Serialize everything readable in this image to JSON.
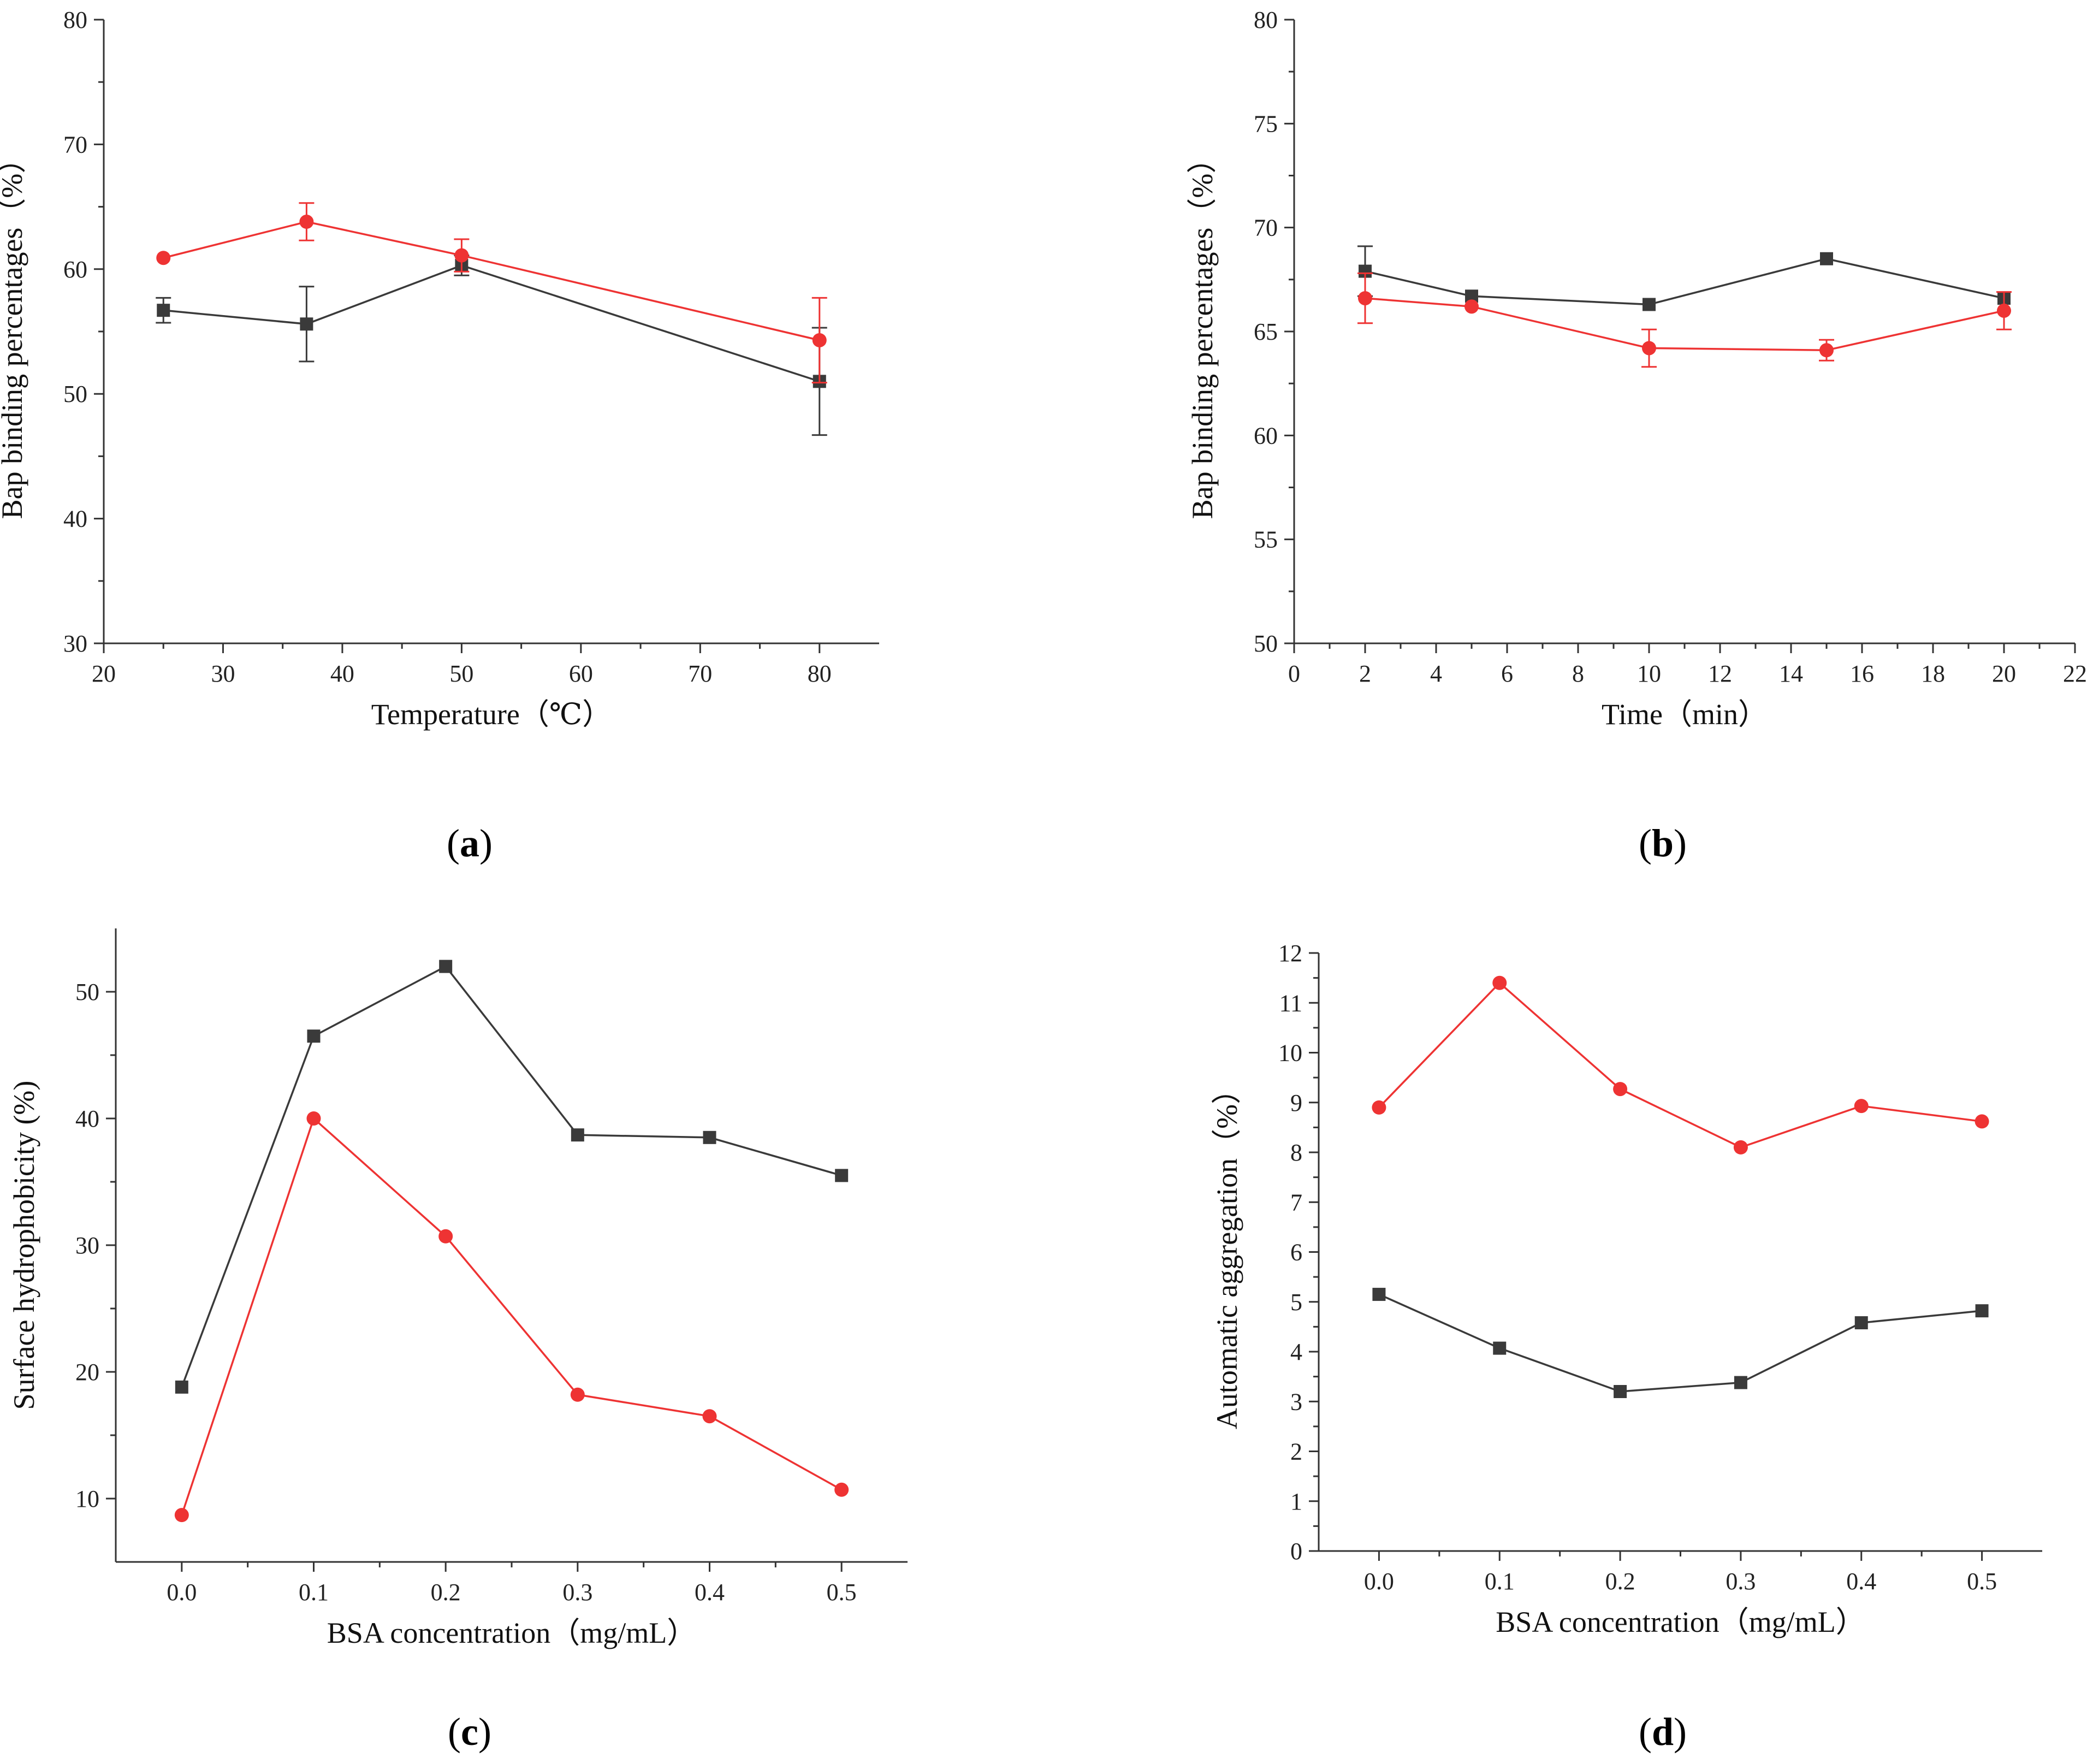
{
  "colors": {
    "black_series": "#3a3a3a",
    "red_series": "#ee3333",
    "axis": "#333333"
  },
  "chart_data": [
    {
      "panel": "a",
      "label": "a",
      "type": "line",
      "xlabel": "Temperature（℃）",
      "ylabel": "Bap binding percentages（%）",
      "xlim": [
        20,
        85
      ],
      "ylim": [
        30,
        80
      ],
      "xticks": [
        20,
        30,
        40,
        50,
        60,
        70,
        80
      ],
      "yticks": [
        30,
        40,
        50,
        60,
        70,
        80
      ],
      "x_decimals": 0,
      "y_decimals": 0,
      "series": [
        {
          "marker": "square",
          "color": "#3a3a3a",
          "x": [
            25,
            37,
            50,
            80
          ],
          "y": [
            56.7,
            55.6,
            60.3,
            51.0
          ],
          "err": [
            1.0,
            3.0,
            0.8,
            4.3
          ]
        },
        {
          "marker": "circle",
          "color": "#ee3333",
          "x": [
            25,
            37,
            50,
            80
          ],
          "y": [
            60.9,
            63.8,
            61.1,
            54.3
          ],
          "err": [
            0,
            1.5,
            1.3,
            3.4
          ]
        }
      ]
    },
    {
      "panel": "b",
      "label": "b",
      "type": "line",
      "xlabel": "Time（min）",
      "ylabel": "Bap binding percentages（%）",
      "xlim": [
        0,
        22
      ],
      "ylim": [
        50,
        80
      ],
      "xticks": [
        0,
        2,
        4,
        6,
        8,
        10,
        12,
        14,
        16,
        18,
        20,
        22
      ],
      "yticks": [
        50,
        55,
        60,
        65,
        70,
        75,
        80
      ],
      "x_decimals": 0,
      "y_decimals": 0,
      "series": [
        {
          "marker": "square",
          "color": "#3a3a3a",
          "x": [
            2,
            5,
            10,
            15,
            20
          ],
          "y": [
            67.9,
            66.7,
            66.3,
            68.5,
            66.6
          ],
          "err": [
            1.2,
            0,
            0,
            0,
            0
          ]
        },
        {
          "marker": "circle",
          "color": "#ee3333",
          "x": [
            2,
            5,
            10,
            15,
            20
          ],
          "y": [
            66.6,
            66.2,
            64.2,
            64.1,
            66.0
          ],
          "err": [
            1.2,
            0,
            0.9,
            0.5,
            0.9
          ]
        }
      ]
    },
    {
      "panel": "c",
      "label": "c",
      "type": "line",
      "xlabel": "BSA concentration（mg/mL）",
      "ylabel": "Surface hydrophobicity (%)",
      "xlim": [
        -0.05,
        0.55
      ],
      "ylim": [
        5,
        55
      ],
      "xticks": [
        0.0,
        0.1,
        0.2,
        0.3,
        0.4,
        0.5
      ],
      "yticks": [
        10,
        20,
        30,
        40,
        50
      ],
      "x_decimals": 1,
      "y_decimals": 0,
      "series": [
        {
          "marker": "square",
          "color": "#3a3a3a",
          "x": [
            0.0,
            0.1,
            0.2,
            0.3,
            0.4,
            0.5
          ],
          "y": [
            18.8,
            46.5,
            52.0,
            38.7,
            38.5,
            35.5
          ],
          "err": [
            0,
            0,
            0,
            0,
            0,
            0
          ]
        },
        {
          "marker": "circle",
          "color": "#ee3333",
          "x": [
            0.0,
            0.1,
            0.2,
            0.3,
            0.4,
            0.5
          ],
          "y": [
            8.7,
            40.0,
            30.7,
            18.2,
            16.5,
            10.7
          ],
          "err": [
            0,
            0,
            0,
            0,
            0,
            0
          ]
        }
      ]
    },
    {
      "panel": "d",
      "label": "d",
      "type": "line",
      "xlabel": "BSA concentration（mg/mL）",
      "ylabel": "Automatic aggregation（%）",
      "xlim": [
        -0.05,
        0.55
      ],
      "ylim": [
        0,
        12
      ],
      "xticks": [
        0.0,
        0.1,
        0.2,
        0.3,
        0.4,
        0.5
      ],
      "yticks": [
        0,
        1,
        2,
        3,
        4,
        5,
        6,
        7,
        8,
        9,
        10,
        11,
        12
      ],
      "x_decimals": 1,
      "y_decimals": 0,
      "series": [
        {
          "marker": "square",
          "color": "#3a3a3a",
          "x": [
            0.0,
            0.1,
            0.2,
            0.3,
            0.4,
            0.5
          ],
          "y": [
            5.15,
            4.07,
            3.2,
            3.38,
            4.58,
            4.82
          ],
          "err": [
            0,
            0,
            0,
            0,
            0,
            0
          ]
        },
        {
          "marker": "circle",
          "color": "#ee3333",
          "x": [
            0.0,
            0.1,
            0.2,
            0.3,
            0.4,
            0.5
          ],
          "y": [
            8.9,
            11.4,
            9.27,
            8.1,
            8.93,
            8.62
          ],
          "err": [
            0,
            0,
            0,
            0,
            0,
            0
          ]
        }
      ]
    }
  ]
}
